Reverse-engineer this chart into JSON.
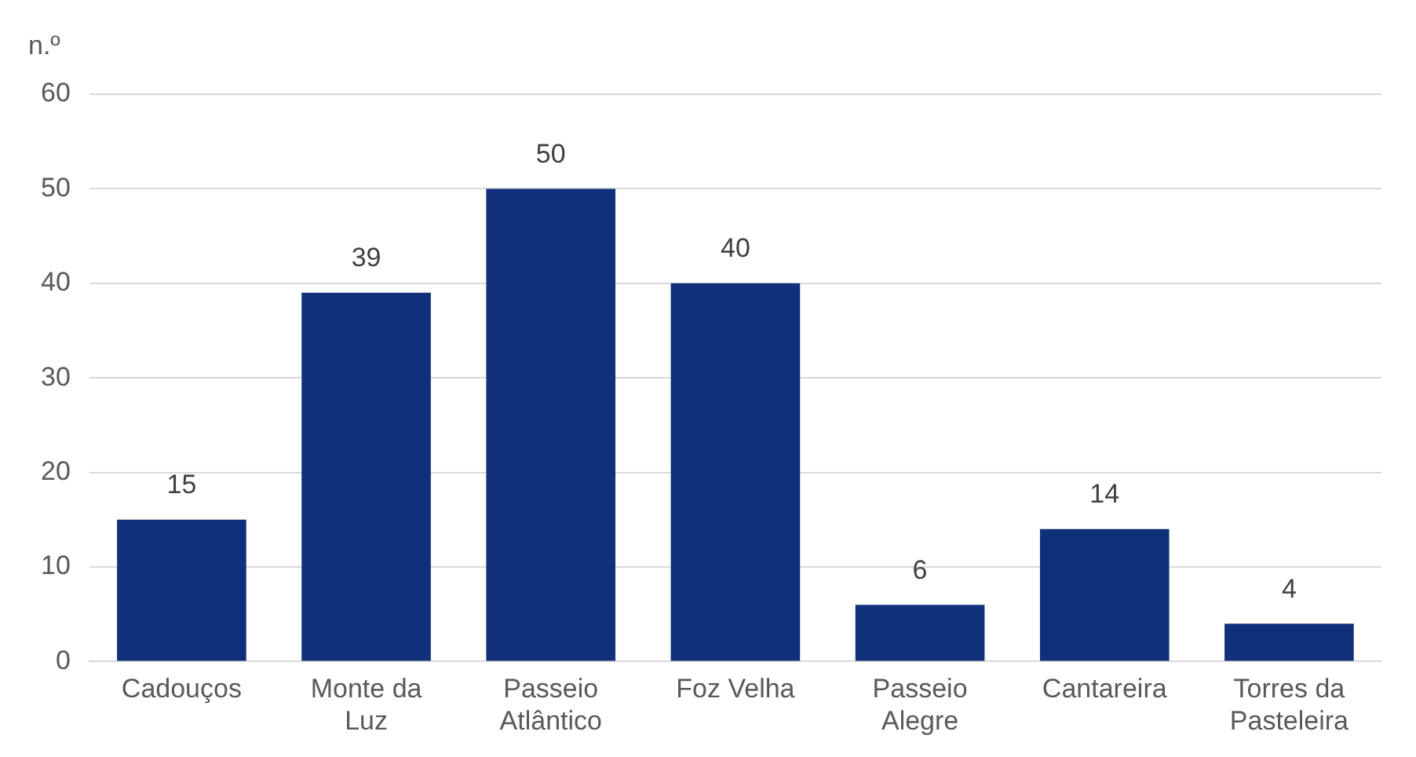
{
  "chart_data": {
    "type": "bar",
    "ylabel": "n.º",
    "categories": [
      "Cadouços",
      "Monte da Luz",
      "Passeio Atlântico",
      "Foz Velha",
      "Passeio Alegre",
      "Cantareira",
      "Torres da Pasteleira"
    ],
    "values": [
      15,
      39,
      50,
      40,
      6,
      14,
      4
    ],
    "color": "#10307a",
    "ylim": [
      0,
      60
    ],
    "yticks": [
      0,
      10,
      20,
      30,
      40,
      50,
      60
    ],
    "grid": "y",
    "data_labels": true,
    "legend": false
  }
}
